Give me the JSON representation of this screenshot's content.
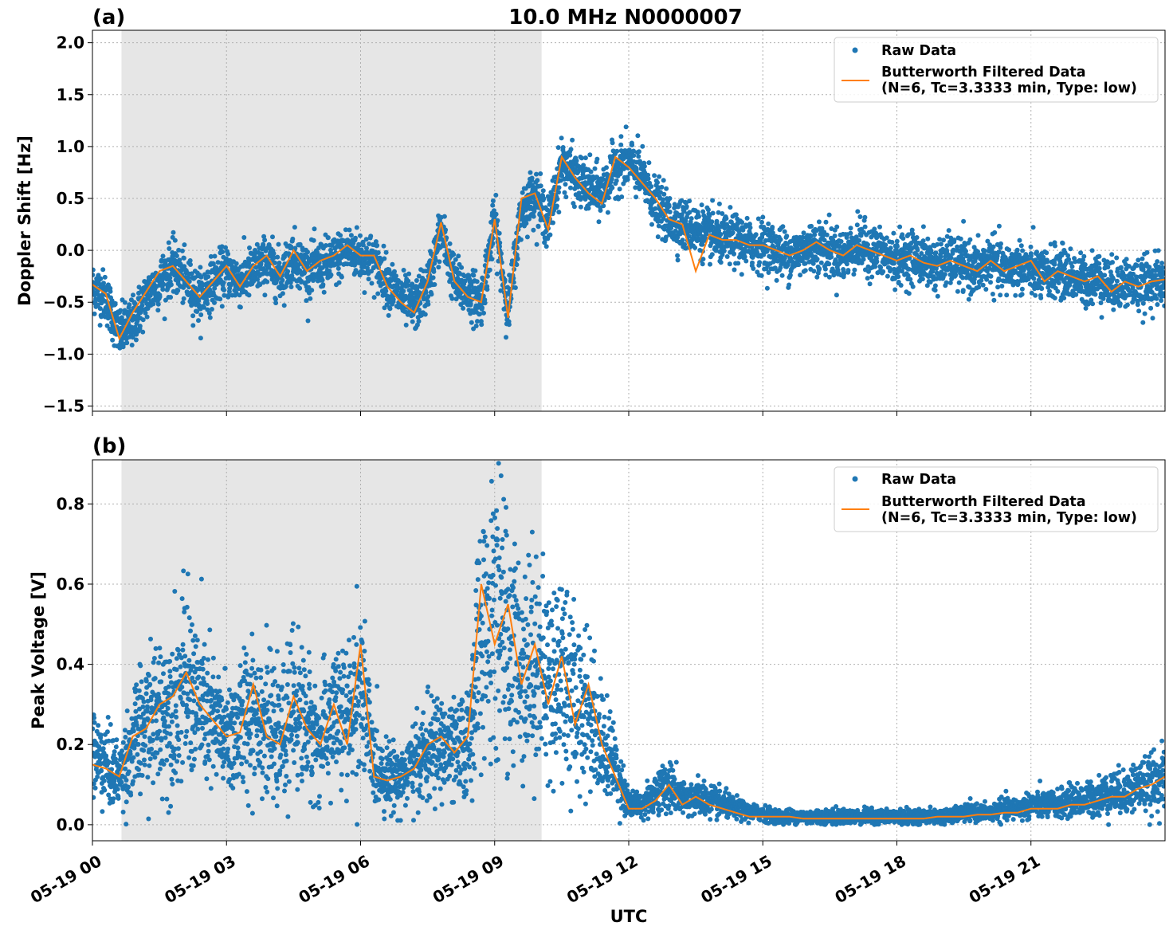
{
  "figure": {
    "title": "10.0 MHz N0000007",
    "xlabel": "UTC",
    "x_tick_labels": [
      "05-19 00",
      "05-19 03",
      "05-19 06",
      "05-19 09",
      "05-19 12",
      "05-19 15",
      "05-19 18",
      "05-19 21"
    ],
    "colors": {
      "raw": "#1f77b4",
      "filtered": "#ff7f0e",
      "shade": "#e6e6e6",
      "grid": "#b0b0b0"
    }
  },
  "chart_data": [
    {
      "type": "scatter",
      "panel_label": "(a)",
      "title": "10.0 MHz N0000007",
      "xlabel": "",
      "ylabel": "Doppler Shift [Hz]",
      "x_unit": "hours since 05-19 00 UTC",
      "xlim": [
        0,
        24
      ],
      "ylim": [
        -1.55,
        2.12
      ],
      "x_ticks": [
        0,
        3,
        6,
        9,
        12,
        15,
        18,
        21
      ],
      "y_ticks": [
        -1.5,
        -1.0,
        -0.5,
        0.0,
        0.5,
        1.0,
        1.5,
        2.0
      ],
      "y_tick_labels": [
        "−1.5",
        "−1.0",
        "−0.5",
        "0.0",
        "0.5",
        "1.0",
        "1.5",
        "2.0"
      ],
      "grid": true,
      "legend_position": "top-right",
      "shaded_region": [
        0.65,
        10.05
      ],
      "series": [
        {
          "name": "Raw Data",
          "style": "points",
          "x": [
            0.0,
            0.3,
            0.6,
            0.9,
            1.2,
            1.5,
            1.8,
            2.1,
            2.4,
            2.7,
            3.0,
            3.3,
            3.6,
            3.9,
            4.2,
            4.5,
            4.8,
            5.1,
            5.4,
            5.7,
            6.0,
            6.3,
            6.6,
            6.9,
            7.2,
            7.5,
            7.8,
            8.1,
            8.4,
            8.7,
            9.0,
            9.3,
            9.6,
            9.9,
            10.2,
            10.5,
            10.8,
            11.1,
            11.4,
            11.7,
            12.0,
            12.3,
            12.6,
            12.9,
            13.2,
            13.5,
            13.8,
            14.1,
            14.4,
            14.7,
            15.0,
            15.3,
            15.6,
            15.9,
            16.2,
            16.5,
            16.8,
            17.1,
            17.4,
            17.7,
            18.0,
            18.3,
            18.6,
            18.9,
            19.2,
            19.5,
            19.8,
            20.1,
            20.4,
            20.7,
            21.0,
            21.3,
            21.6,
            21.9,
            22.2,
            22.5,
            22.8,
            23.1,
            23.4,
            23.7,
            24.0
          ],
          "y": [
            -0.35,
            -0.45,
            -0.8,
            -0.7,
            -0.45,
            -0.3,
            -0.15,
            -0.3,
            -0.45,
            -0.3,
            -0.2,
            -0.3,
            -0.2,
            -0.1,
            -0.25,
            -0.05,
            -0.2,
            -0.15,
            -0.1,
            0.0,
            -0.05,
            -0.1,
            -0.3,
            -0.45,
            -0.55,
            -0.35,
            0.2,
            -0.3,
            -0.4,
            -0.5,
            0.3,
            -0.6,
            0.4,
            0.55,
            0.25,
            0.85,
            0.7,
            0.6,
            0.55,
            0.8,
            0.85,
            0.7,
            0.45,
            0.3,
            0.25,
            0.2,
            0.15,
            0.1,
            0.1,
            0.05,
            0.05,
            0.0,
            -0.05,
            0.0,
            0.05,
            0.0,
            -0.05,
            0.05,
            0.0,
            -0.05,
            -0.1,
            -0.05,
            -0.1,
            -0.15,
            -0.1,
            -0.15,
            -0.2,
            -0.1,
            -0.2,
            -0.15,
            -0.2,
            -0.25,
            -0.2,
            -0.25,
            -0.3,
            -0.25,
            -0.35,
            -0.3,
            -0.35,
            -0.3,
            -0.3
          ]
        },
        {
          "name": "Butterworth Filtered Data\n(N=6, Tc=3.3333 min, Type: low)",
          "style": "line",
          "x": [
            0.0,
            0.3,
            0.6,
            0.9,
            1.2,
            1.5,
            1.8,
            2.1,
            2.4,
            2.7,
            3.0,
            3.3,
            3.6,
            3.9,
            4.2,
            4.5,
            4.8,
            5.1,
            5.4,
            5.7,
            6.0,
            6.3,
            6.6,
            6.9,
            7.2,
            7.5,
            7.8,
            8.1,
            8.4,
            8.7,
            9.0,
            9.3,
            9.6,
            9.9,
            10.2,
            10.5,
            10.8,
            11.1,
            11.4,
            11.7,
            12.0,
            12.3,
            12.6,
            12.9,
            13.2,
            13.5,
            13.8,
            14.1,
            14.4,
            14.7,
            15.0,
            15.3,
            15.6,
            15.9,
            16.2,
            16.5,
            16.8,
            17.1,
            17.4,
            17.7,
            18.0,
            18.3,
            18.6,
            18.9,
            19.2,
            19.5,
            19.8,
            20.1,
            20.4,
            20.7,
            21.0,
            21.3,
            21.6,
            21.9,
            22.2,
            22.5,
            22.8,
            23.1,
            23.4,
            23.7,
            24.0
          ],
          "y": [
            -0.33,
            -0.42,
            -0.85,
            -0.6,
            -0.4,
            -0.2,
            -0.15,
            -0.3,
            -0.45,
            -0.3,
            -0.15,
            -0.35,
            -0.15,
            -0.05,
            -0.25,
            0.0,
            -0.2,
            -0.1,
            -0.05,
            0.05,
            -0.05,
            -0.05,
            -0.35,
            -0.5,
            -0.6,
            -0.3,
            0.27,
            -0.3,
            -0.45,
            -0.5,
            0.3,
            -0.65,
            0.5,
            0.55,
            0.2,
            0.9,
            0.7,
            0.55,
            0.45,
            0.9,
            0.8,
            0.65,
            0.5,
            0.3,
            0.25,
            -0.2,
            0.15,
            0.1,
            0.1,
            0.05,
            0.05,
            0.0,
            -0.05,
            0.0,
            0.08,
            0.0,
            -0.05,
            0.05,
            0.0,
            -0.05,
            -0.1,
            -0.05,
            -0.12,
            -0.15,
            -0.1,
            -0.15,
            -0.2,
            -0.1,
            -0.2,
            -0.15,
            -0.1,
            -0.3,
            -0.2,
            -0.25,
            -0.3,
            -0.25,
            -0.4,
            -0.3,
            -0.35,
            -0.3,
            -0.28
          ]
        }
      ]
    },
    {
      "type": "scatter",
      "panel_label": "(b)",
      "title": "",
      "xlabel": "UTC",
      "ylabel": "Peak Voltage [V]",
      "x_unit": "hours since 05-19 00 UTC",
      "xlim": [
        0,
        24
      ],
      "ylim": [
        -0.04,
        0.91
      ],
      "x_ticks": [
        0,
        3,
        6,
        9,
        12,
        15,
        18,
        21
      ],
      "y_ticks": [
        0.0,
        0.2,
        0.4,
        0.6,
        0.8
      ],
      "y_tick_labels": [
        "0.0",
        "0.2",
        "0.4",
        "0.6",
        "0.8"
      ],
      "grid": true,
      "legend_position": "top-right",
      "shaded_region": [
        0.65,
        10.05
      ],
      "series": [
        {
          "name": "Raw Data",
          "style": "points",
          "x": [
            0.0,
            0.3,
            0.6,
            0.9,
            1.2,
            1.5,
            1.8,
            2.1,
            2.4,
            2.7,
            3.0,
            3.3,
            3.6,
            3.9,
            4.2,
            4.5,
            4.8,
            5.1,
            5.4,
            5.7,
            6.0,
            6.3,
            6.6,
            6.9,
            7.2,
            7.5,
            7.8,
            8.1,
            8.4,
            8.7,
            9.0,
            9.3,
            9.6,
            9.9,
            10.2,
            10.5,
            10.8,
            11.1,
            11.4,
            11.7,
            12.0,
            12.3,
            12.6,
            12.9,
            13.2,
            13.5,
            13.8,
            14.1,
            14.4,
            14.7,
            15.0,
            15.3,
            15.6,
            15.9,
            16.2,
            16.5,
            16.8,
            17.1,
            17.4,
            17.7,
            18.0,
            18.3,
            18.6,
            18.9,
            19.2,
            19.5,
            19.8,
            20.1,
            20.4,
            20.7,
            21.0,
            21.3,
            21.6,
            21.9,
            22.2,
            22.5,
            22.8,
            23.1,
            23.4,
            23.7,
            24.0
          ],
          "y": [
            0.18,
            0.15,
            0.12,
            0.2,
            0.25,
            0.28,
            0.3,
            0.35,
            0.3,
            0.25,
            0.22,
            0.24,
            0.3,
            0.25,
            0.2,
            0.3,
            0.25,
            0.2,
            0.28,
            0.25,
            0.35,
            0.15,
            0.12,
            0.12,
            0.15,
            0.18,
            0.2,
            0.18,
            0.2,
            0.5,
            0.55,
            0.45,
            0.4,
            0.42,
            0.35,
            0.4,
            0.3,
            0.3,
            0.2,
            0.15,
            0.05,
            0.05,
            0.08,
            0.1,
            0.06,
            0.07,
            0.06,
            0.05,
            0.04,
            0.03,
            0.03,
            0.02,
            0.02,
            0.02,
            0.02,
            0.02,
            0.02,
            0.02,
            0.02,
            0.02,
            0.02,
            0.02,
            0.02,
            0.02,
            0.02,
            0.03,
            0.03,
            0.03,
            0.04,
            0.04,
            0.05,
            0.05,
            0.05,
            0.06,
            0.06,
            0.07,
            0.08,
            0.08,
            0.1,
            0.1,
            0.12
          ]
        },
        {
          "name": "Butterworth Filtered Data\n(N=6, Tc=3.3333 min, Type: low)",
          "style": "line",
          "x": [
            0.0,
            0.3,
            0.6,
            0.9,
            1.2,
            1.5,
            1.8,
            2.1,
            2.4,
            2.7,
            3.0,
            3.3,
            3.6,
            3.9,
            4.2,
            4.5,
            4.8,
            5.1,
            5.4,
            5.7,
            6.0,
            6.3,
            6.6,
            6.9,
            7.2,
            7.5,
            7.8,
            8.1,
            8.4,
            8.7,
            9.0,
            9.3,
            9.6,
            9.9,
            10.2,
            10.5,
            10.8,
            11.1,
            11.4,
            11.7,
            12.0,
            12.3,
            12.6,
            12.9,
            13.2,
            13.5,
            13.8,
            14.1,
            14.4,
            14.7,
            15.0,
            15.3,
            15.6,
            15.9,
            16.2,
            16.5,
            16.8,
            17.1,
            17.4,
            17.7,
            18.0,
            18.3,
            18.6,
            18.9,
            19.2,
            19.5,
            19.8,
            20.1,
            20.4,
            20.7,
            21.0,
            21.3,
            21.6,
            21.9,
            22.2,
            22.5,
            22.8,
            23.1,
            23.4,
            23.7,
            24.0
          ],
          "y": [
            0.15,
            0.14,
            0.12,
            0.22,
            0.24,
            0.3,
            0.32,
            0.38,
            0.3,
            0.26,
            0.22,
            0.23,
            0.35,
            0.22,
            0.2,
            0.32,
            0.24,
            0.2,
            0.3,
            0.2,
            0.45,
            0.12,
            0.11,
            0.12,
            0.14,
            0.2,
            0.22,
            0.18,
            0.22,
            0.6,
            0.45,
            0.55,
            0.35,
            0.45,
            0.3,
            0.42,
            0.25,
            0.35,
            0.2,
            0.12,
            0.04,
            0.04,
            0.06,
            0.1,
            0.05,
            0.07,
            0.05,
            0.04,
            0.03,
            0.02,
            0.02,
            0.02,
            0.02,
            0.015,
            0.015,
            0.015,
            0.015,
            0.015,
            0.015,
            0.015,
            0.015,
            0.015,
            0.015,
            0.02,
            0.02,
            0.02,
            0.025,
            0.025,
            0.03,
            0.03,
            0.04,
            0.04,
            0.04,
            0.05,
            0.05,
            0.06,
            0.07,
            0.07,
            0.09,
            0.1,
            0.12
          ]
        }
      ]
    }
  ]
}
